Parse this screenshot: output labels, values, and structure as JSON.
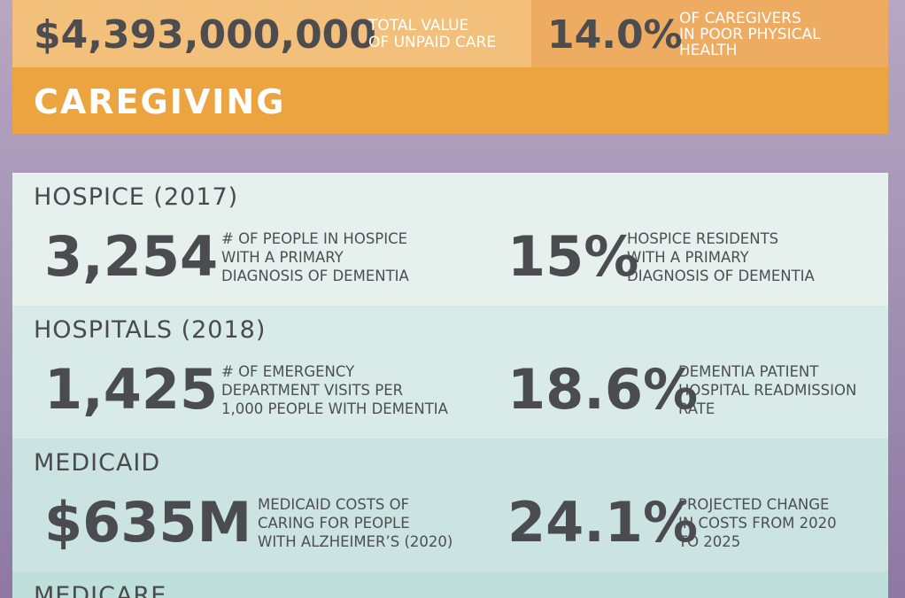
{
  "caregiving": {
    "title": "CAREGIVING",
    "stats": [
      {
        "value": "$4,393,000,000",
        "label_lines": [
          "TOTAL VALUE",
          "OF UNPAID CARE"
        ]
      },
      {
        "value": "14.0%",
        "label_lines": [
          "OF CAREGIVERS",
          "IN POOR PHYSICAL",
          "HEALTH"
        ]
      }
    ]
  },
  "sections": [
    {
      "title": "HOSPICE (2017)",
      "stats": [
        {
          "value": "3,254",
          "label_lines": [
            "# OF PEOPLE IN HOSPICE",
            "WITH A PRIMARY",
            "DIAGNOSIS OF DEMENTIA"
          ]
        },
        {
          "value": "15%",
          "label_lines": [
            "HOSPICE RESIDENTS",
            "WITH A PRIMARY",
            "DIAGNOSIS OF DEMENTIA"
          ]
        }
      ]
    },
    {
      "title": "HOSPITALS (2018)",
      "stats": [
        {
          "value": "1,425",
          "label_lines": [
            "# OF EMERGENCY",
            "DEPARTMENT VISITS PER",
            "1,000 PEOPLE WITH DEMENTIA"
          ]
        },
        {
          "value": "18.6%",
          "label_lines": [
            "DEMENTIA PATIENT",
            "HOSPITAL READMISSION",
            "RATE"
          ]
        }
      ]
    },
    {
      "title": "MEDICAID",
      "stats": [
        {
          "value": "$635M",
          "label_lines": [
            "MEDICAID COSTS OF",
            "CARING FOR PEOPLE",
            "WITH ALZHEIMER’S (2020)"
          ]
        },
        {
          "value": "24.1%",
          "label_lines": [
            "PROJECTED CHANGE",
            "IN COSTS FROM 2020",
            "TO 2025"
          ]
        }
      ]
    },
    {
      "title": "MEDICARE",
      "stats": []
    }
  ],
  "colors": {
    "caregiving_stat_left": "#f3c07c",
    "caregiving_stat_right": "#eeac62",
    "caregiving_title_bar": "#eba43f",
    "hospice_bg": "#e6f1ee",
    "hospitals_bg": "#d9ebe8",
    "medicaid_bg": "#cbe4e1",
    "medicare_bg": "#bfdfdb",
    "text_dark": "#4b4c4f"
  }
}
